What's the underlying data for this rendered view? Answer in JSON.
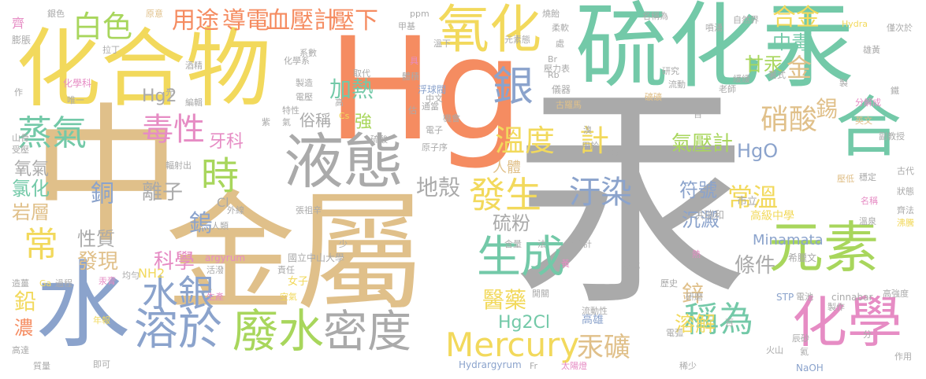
{
  "palette": {
    "gray": "#aaaaaa",
    "tan": "#e0c08a",
    "yellow": "#f2d95c",
    "green": "#73c9a8",
    "lime": "#a8d65c",
    "orange": "#f58c61",
    "blue": "#8ba3cc",
    "pink": "#e68cc4",
    "lgray": "#c9c9c9"
  },
  "words": [
    "汞",
    "金屬",
    "中",
    "Hg",
    "化合物",
    "硫化汞",
    "水",
    "液態",
    "氧化",
    "元素",
    "化學",
    "廢水",
    "溶於",
    "密度",
    "Mercury",
    "生成",
    "合",
    "銀",
    "毒性",
    "蒸氣",
    "時",
    "發生",
    "水銀",
    "常",
    "白色",
    "用途",
    "導電",
    "血壓計",
    "壓下",
    "合金",
    "中毒",
    "甘汞",
    "金",
    "硝酸",
    "溫度",
    "計",
    "加熱",
    "汙染",
    "稱為",
    "汞礦",
    "醫藥",
    "氣壓計",
    "常溫",
    "符號",
    "鎢",
    "銅",
    "離子",
    "地殼",
    "科學",
    "發現",
    "性質",
    "硫粉",
    "沉澱",
    "條件",
    "溶解",
    "鋅",
    "鉛",
    "濃",
    "錫",
    "氧氣",
    "氯化",
    "岩層",
    "牙科",
    "強",
    "俗稱",
    "HgO",
    "Hg2",
    "Hg2Cl",
    "NH2",
    "Cl",
    "Minamata",
    "人體",
    "洪瑞和",
    "高級中學",
    "市立",
    "國立中山大學",
    "高雄",
    "希臘文",
    "cinnabar",
    "argyrum",
    "Hydrargyrum",
    "STP",
    "NaOH",
    "ppm",
    "Rb",
    "Br",
    "Cs",
    "Ga",
    "Fr",
    "Hydra",
    "鐵",
    "齊",
    "膨脹",
    "銀色",
    "化學系",
    "化學科",
    "唯一",
    "作",
    "山骨",
    "受壓",
    "造薑",
    "高達",
    "質量",
    "年報",
    "即可",
    "過程",
    "汞膏",
    "均勻",
    "拉丁",
    "酒精",
    "編輯",
    "特性",
    "紫",
    "氣",
    "輻射出",
    "外線",
    "人類",
    "張祖辛",
    "活潑",
    "生產",
    "空氣",
    "女子",
    "責任",
    "少",
    "原意",
    "光",
    "系數",
    "製造",
    "電壓",
    "高",
    "估",
    "電子",
    "通當",
    "機會",
    "原子序",
    "硫酸",
    "溴",
    "用於",
    "稀酸",
    "取代",
    "體積",
    "浮球閥",
    "中文",
    "甲基",
    "具",
    "溫下",
    "元素態",
    "壓力表",
    "燒飴",
    "處",
    "柔軟",
    "儀器",
    "古羅馬",
    "名稱為",
    "噴湧",
    "自然界",
    "研究",
    "流動",
    "礦礦",
    "緩緩",
    "老師",
    "著式",
    "製",
    "僅次於",
    "雄黃",
    "分解成",
    "英文",
    "副教授",
    "古代",
    "穩定",
    "壓低",
    "名稱",
    "狀態",
    "齊法",
    "溫泉",
    "沸騰",
    "高強度",
    "火山",
    "辰砂",
    "電池",
    "研磨",
    "製作",
    "歷史",
    "形式",
    "溫度計",
    "含量",
    "法",
    "熱",
    "黃",
    "百",
    "百",
    "流動性",
    "開關",
    "電弧",
    "氦",
    "稀少",
    "作用",
    "分",
    "太陽燈"
  ]
}
